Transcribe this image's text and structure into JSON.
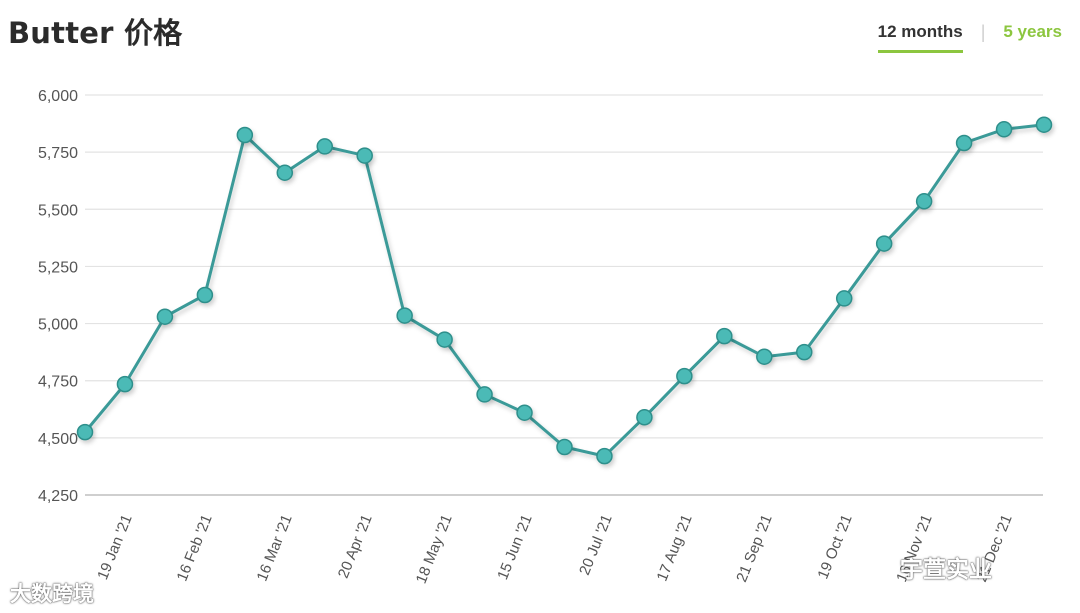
{
  "header": {
    "title": "Butter 价格",
    "tabs": [
      {
        "label": "12 months",
        "active": true
      },
      {
        "label": "5 years",
        "active": false
      }
    ]
  },
  "colors": {
    "line": "#3a9a98",
    "marker_fill": "#4bbab6",
    "marker_stroke": "#2e8f8b",
    "grid": "#e3e3e3",
    "tab_accent": "#8cc63f"
  },
  "watermarks": {
    "left": "大数跨境",
    "right": "宇萱实业"
  },
  "chart_data": {
    "type": "line",
    "title": "",
    "xlabel": "",
    "ylabel": "",
    "ylim": [
      4250,
      6000
    ],
    "yticks": [
      "6,000",
      "5,750",
      "5,500",
      "5,250",
      "5,000",
      "4,750",
      "4,500",
      "4,250"
    ],
    "ytick_values": [
      6000,
      5750,
      5500,
      5250,
      5000,
      4750,
      4500,
      4250
    ],
    "grid": true,
    "legend": "none",
    "xtick_labels": [
      "19 Jan '21",
      "16 Feb '21",
      "16 Mar '21",
      "20 Apr '21",
      "18 May '21",
      "15 Jun '21",
      "20 Jul '21",
      "17 Aug '21",
      "21 Sep '21",
      "19 Oct '21",
      "16 Nov '21",
      "21 Dec '21"
    ],
    "series": [
      {
        "values": [
          4525,
          4735,
          5030,
          5125,
          5825,
          5660,
          5775,
          5735,
          5035,
          4930,
          4690,
          4610,
          4460,
          4420,
          4590,
          4770,
          4945,
          4855,
          4875,
          5110,
          5350,
          5535,
          5790,
          5850,
          5870
        ]
      }
    ]
  }
}
